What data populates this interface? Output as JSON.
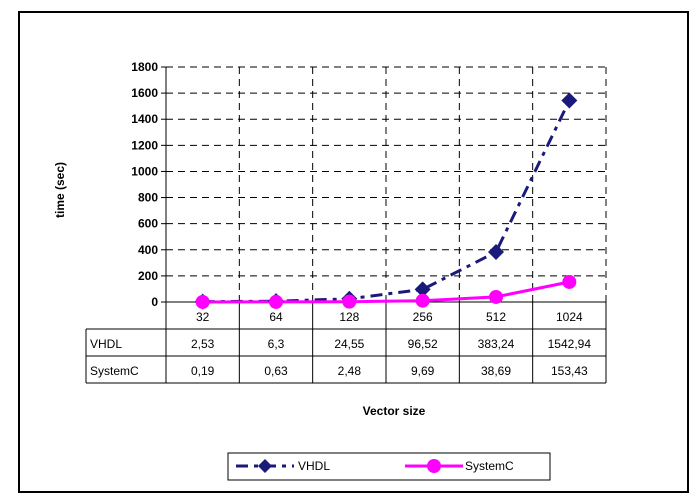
{
  "chart_data": {
    "type": "line",
    "categories": [
      "32",
      "64",
      "128",
      "256",
      "512",
      "1024"
    ],
    "series": [
      {
        "name": "VHDL",
        "values": [
          2.53,
          6.3,
          24.55,
          96.52,
          383.24,
          1542.94
        ],
        "color": "#1a1a7a",
        "marker": "diamond",
        "line": "dashed"
      },
      {
        "name": "SystemC",
        "values": [
          0.19,
          0.63,
          2.48,
          9.69,
          38.69,
          153.43
        ],
        "color": "#ff00ff",
        "marker": "circle",
        "line": "solid"
      }
    ],
    "table_rows": [
      {
        "label": "VHDL",
        "cells": [
          "2,53",
          "6,3",
          "24,55",
          "96,52",
          "383,24",
          "1542,94"
        ]
      },
      {
        "label": "SystemC",
        "cells": [
          "0,19",
          "0,63",
          "2,48",
          "9,69",
          "38,69",
          "153,43"
        ]
      }
    ],
    "yticks": [
      "0",
      "200",
      "400",
      "600",
      "800",
      "1000",
      "1200",
      "1400",
      "1600",
      "1800"
    ],
    "ylim": [
      0,
      1800
    ],
    "ylabel": "time (sec)",
    "xlabel": "Vector size",
    "legend_labels": [
      "VHDL",
      "SystemC"
    ],
    "legend_position": "bottom-center",
    "grid": "dashed"
  }
}
